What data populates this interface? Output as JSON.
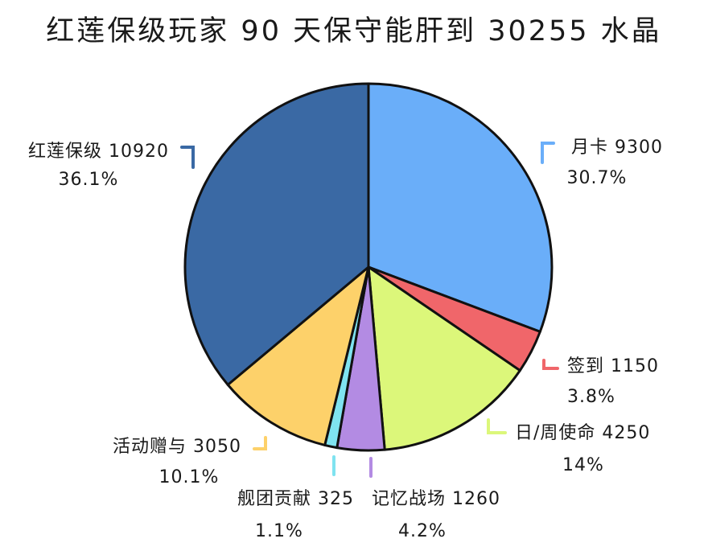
{
  "chart_data": {
    "type": "pie",
    "title": "红莲保级玩家 90 天保守能肝到 30255 水晶",
    "slices": [
      {
        "name": "月卡",
        "value": 9300,
        "percent": "30.7%",
        "color": "#6aaef9"
      },
      {
        "name": "签到",
        "value": 1150,
        "percent": "3.8%",
        "color": "#f0666a"
      },
      {
        "name": "日/周使命",
        "value": 4250,
        "percent": "14%",
        "color": "#dcf77a"
      },
      {
        "name": "记忆战场",
        "value": 1260,
        "percent": "4.2%",
        "color": "#b38be3"
      },
      {
        "name": "舰团贡献",
        "value": 325,
        "percent": "1.1%",
        "color": "#7fe3f0"
      },
      {
        "name": "活动赠与",
        "value": 3050,
        "percent": "10.1%",
        "color": "#fdd16a"
      },
      {
        "name": "红莲保级",
        "value": 10920,
        "percent": "36.1%",
        "color": "#3a69a4"
      }
    ],
    "total": 30255
  }
}
